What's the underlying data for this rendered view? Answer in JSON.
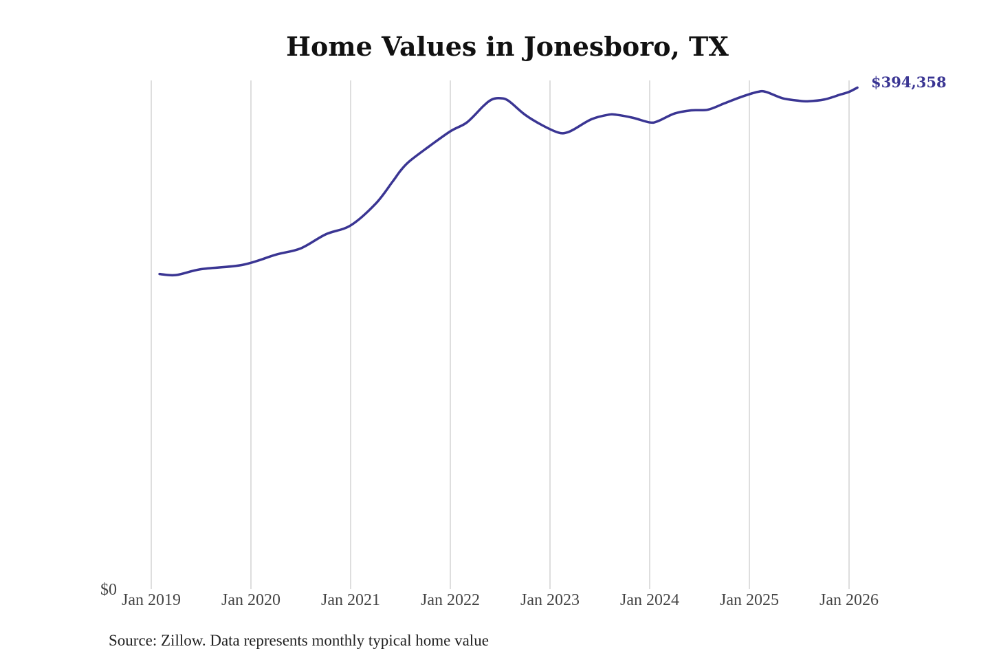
{
  "chart_data": {
    "type": "line",
    "title": "Home Values in Jonesboro, TX",
    "xlabel": "",
    "ylabel": "",
    "ylim": [
      0,
      400000
    ],
    "y_tick_labels": [
      "$0"
    ],
    "x_tick_labels": [
      "Jan 2019",
      "Jan 2020",
      "Jan 2021",
      "Jan 2022",
      "Jan 2023",
      "Jan 2024",
      "Jan 2025",
      "Jan 2026"
    ],
    "x_ticks": [
      "2019-01",
      "2020-01",
      "2021-01",
      "2022-01",
      "2023-01",
      "2024-01",
      "2025-01",
      "2026-01"
    ],
    "grid": "vertical",
    "line_color": "#3a3593",
    "end_label": "$394,358",
    "series": [
      {
        "x": [
          "2019-02",
          "2019-04",
          "2019-07",
          "2019-12",
          "2020-04",
          "2020-07",
          "2020-10",
          "2021-01",
          "2021-04",
          "2021-06",
          "2021-07",
          "2021-08",
          "2021-10",
          "2022-01",
          "2022-03",
          "2022-05",
          "2022-06",
          "2022-07",
          "2022-08",
          "2022-10",
          "2022-12",
          "2023-02",
          "2023-03",
          "2023-04",
          "2023-06",
          "2023-08",
          "2023-09",
          "2023-11",
          "2024-01",
          "2024-02",
          "2024-04",
          "2024-06",
          "2024-08",
          "2024-10",
          "2024-12",
          "2025-02",
          "2025-03",
          "2025-05",
          "2025-07",
          "2025-08",
          "2025-10",
          "2025-12",
          "2026-01",
          "2026-02"
        ],
        "values": [
          247800,
          247000,
          251600,
          255000,
          263000,
          268000,
          279000,
          286000,
          303000,
          320000,
          329000,
          336000,
          346000,
          360000,
          367000,
          380000,
          385000,
          386000,
          384000,
          373000,
          365000,
          359000,
          359000,
          362000,
          369500,
          373000,
          373000,
          370600,
          367000,
          368000,
          374000,
          376500,
          377000,
          382000,
          387000,
          391000,
          391000,
          386000,
          384000,
          383600,
          385000,
          389000,
          391000,
          394358
        ]
      }
    ]
  },
  "source": "Source: Zillow. Data represents monthly typical home value"
}
